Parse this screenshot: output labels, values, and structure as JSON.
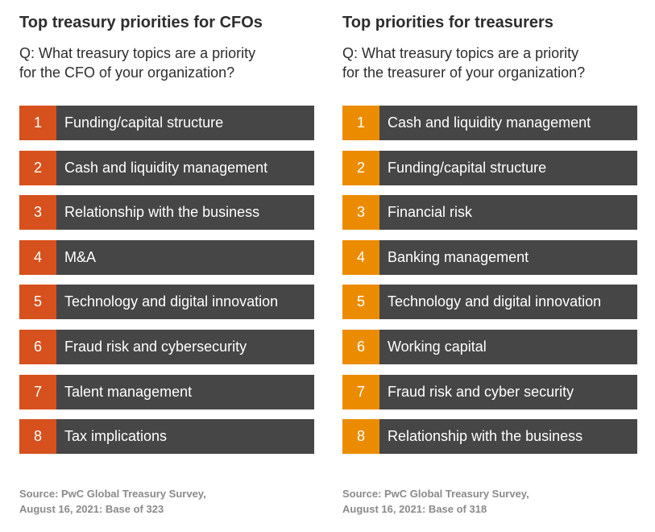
{
  "panels": [
    {
      "title": "Top treasury priorities for CFOs",
      "question": [
        "Q: What treasury topics are a priority",
        "for the CFO of your organization?"
      ],
      "items": [
        {
          "rank": "1",
          "label": "Funding/capital structure"
        },
        {
          "rank": "2",
          "label": "Cash and liquidity management"
        },
        {
          "rank": "3",
          "label": "Relationship with the business"
        },
        {
          "rank": "4",
          "label": "M&A"
        },
        {
          "rank": "5",
          "label": "Technology and digital innovation"
        },
        {
          "rank": "6",
          "label": "Fraud risk and cybersecurity"
        },
        {
          "rank": "7",
          "label": "Talent management"
        },
        {
          "rank": "8",
          "label": "Tax implications"
        }
      ],
      "source": [
        "Source: PwC Global Treasury Survey,",
        "August 16, 2021: Base of 323"
      ]
    },
    {
      "title": "Top priorities for treasurers",
      "question": [
        "Q: What treasury topics are a priority",
        "for the treasurer of your organization?"
      ],
      "items": [
        {
          "rank": "1",
          "label": "Cash and liquidity management"
        },
        {
          "rank": "2",
          "label": "Funding/capital structure"
        },
        {
          "rank": "3",
          "label": "Financial risk"
        },
        {
          "rank": "4",
          "label": "Banking management"
        },
        {
          "rank": "5",
          "label": "Technology and digital innovation"
        },
        {
          "rank": "6",
          "label": "Working capital"
        },
        {
          "rank": "7",
          "label": "Fraud risk and cyber security"
        },
        {
          "rank": "8",
          "label": "Relationship with the business"
        }
      ],
      "source": [
        "Source: PwC Global Treasury Survey,",
        "August 16, 2021: Base of 318"
      ]
    }
  ]
}
